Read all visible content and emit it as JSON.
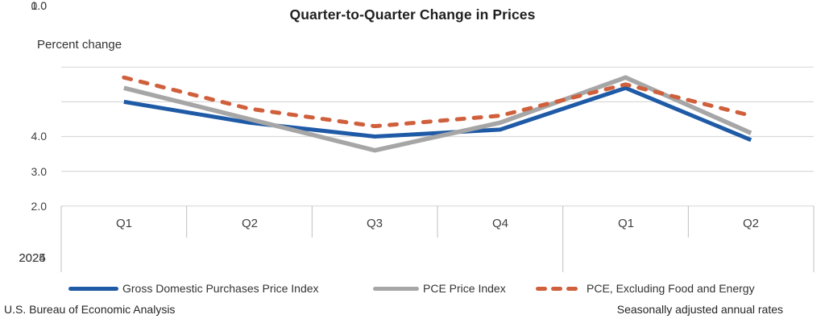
{
  "title": "Quarter-to-Quarter Change in Prices",
  "y_axis_label": "Percent change",
  "footer": {
    "left": "U.S. Bureau of Economic Analysis",
    "right": "Seasonally adjusted annual rates"
  },
  "colors": {
    "gdp_purchases_line": "#1F5AA6",
    "pce_line": "#A6A6A6",
    "core_pce_line": "#D0603C",
    "gridline": "#D9D9D9",
    "axis_divider": "#BFBFBF",
    "text": "#404040"
  },
  "chart_data": {
    "type": "line",
    "title": "Quarter-to-Quarter Change in Prices",
    "ylabel": "Percent change",
    "ylim": [
      0.0,
      4.0
    ],
    "grid": true,
    "legend_position": "bottom",
    "yticks": [
      "4.0",
      "3.0",
      "2.0",
      "1.0",
      "0.0"
    ],
    "x_categories": [
      "Q1",
      "Q2",
      "Q3",
      "Q4",
      "Q1",
      "Q2"
    ],
    "year_groups": [
      {
        "label": "2024",
        "quarters": 4
      },
      {
        "label": "2025",
        "quarters": 2
      }
    ],
    "series": [
      {
        "name": "Gross Domestic Purchases Price Index",
        "color": "#1F5AA6",
        "style": "solid",
        "values": [
          3.0,
          2.4,
          2.0,
          2.2,
          3.4,
          1.9
        ]
      },
      {
        "name": "PCE Price Index",
        "color": "#A6A6A6",
        "style": "solid",
        "values": [
          3.4,
          2.5,
          1.6,
          2.4,
          3.7,
          2.1
        ]
      },
      {
        "name": "PCE, Excluding Food and Energy",
        "color": "#D0603C",
        "style": "dashed",
        "values": [
          3.7,
          2.8,
          2.3,
          2.6,
          3.5,
          2.6
        ]
      }
    ]
  }
}
